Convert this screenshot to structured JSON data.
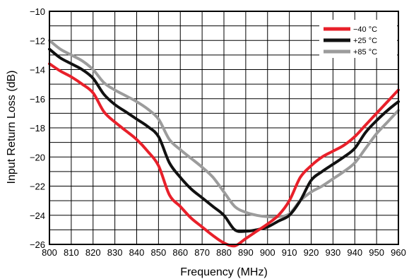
{
  "chart_data": {
    "type": "line",
    "title": "",
    "xlabel": "Frequency (MHz)",
    "ylabel": "Input Return Loss (dB)",
    "xlim": [
      800,
      960
    ],
    "ylim": [
      -26,
      -10
    ],
    "xticks": [
      800,
      810,
      820,
      830,
      840,
      850,
      860,
      870,
      880,
      890,
      900,
      910,
      920,
      930,
      940,
      950,
      960
    ],
    "yticks": [
      -10,
      -12,
      -14,
      -16,
      -18,
      -20,
      -22,
      -24,
      -26
    ],
    "xtick_labels": [
      "800",
      "810",
      "820",
      "830",
      "840",
      "850",
      "860",
      "870",
      "880",
      "890",
      "900",
      "910",
      "920",
      "930",
      "940",
      "950",
      "960"
    ],
    "ytick_labels": [
      "−10",
      "−12",
      "−14",
      "−16",
      "−18",
      "−20",
      "−22",
      "−24",
      "−26"
    ],
    "grid": true,
    "legend_position": "top-right",
    "series": [
      {
        "name": "−40 °C",
        "color": "#e8202a",
        "x": [
          800,
          805,
          810,
          815,
          820,
          825,
          830,
          835,
          840,
          845,
          850,
          855,
          860,
          865,
          870,
          875,
          880,
          885,
          890,
          895,
          900,
          905,
          910,
          915,
          920,
          925,
          930,
          935,
          940,
          945,
          950,
          955,
          960
        ],
        "y": [
          -13.6,
          -14.1,
          -14.5,
          -15.0,
          -15.6,
          -16.9,
          -17.6,
          -18.2,
          -18.8,
          -19.6,
          -20.6,
          -22.6,
          -23.4,
          -24.2,
          -24.8,
          -25.4,
          -25.9,
          -26.1,
          -25.6,
          -25.1,
          -24.6,
          -24.0,
          -23.0,
          -21.4,
          -20.6,
          -20.0,
          -19.6,
          -19.2,
          -18.6,
          -17.8,
          -17.0,
          -16.2,
          -15.4
        ]
      },
      {
        "name": "+25 °C",
        "color": "#111111",
        "x": [
          800,
          805,
          810,
          815,
          820,
          825,
          830,
          835,
          840,
          845,
          850,
          855,
          860,
          865,
          870,
          875,
          880,
          885,
          890,
          895,
          900,
          905,
          910,
          915,
          920,
          925,
          930,
          935,
          940,
          945,
          950,
          955,
          960
        ],
        "y": [
          -12.6,
          -13.2,
          -13.6,
          -14.0,
          -14.6,
          -15.7,
          -16.4,
          -16.9,
          -17.4,
          -17.9,
          -18.6,
          -20.4,
          -21.4,
          -22.2,
          -22.8,
          -23.4,
          -24.0,
          -25.0,
          -25.1,
          -25.0,
          -24.8,
          -24.4,
          -24.0,
          -23.0,
          -21.6,
          -21.0,
          -20.5,
          -20.0,
          -19.4,
          -18.3,
          -17.5,
          -16.8,
          -16.2
        ]
      },
      {
        "name": "+85 °C",
        "color": "#9c9c9c",
        "x": [
          800,
          805,
          810,
          815,
          820,
          825,
          830,
          835,
          840,
          845,
          850,
          855,
          860,
          865,
          870,
          875,
          880,
          885,
          890,
          895,
          900,
          905,
          910,
          915,
          920,
          925,
          930,
          935,
          940,
          945,
          950,
          955,
          960
        ],
        "y": [
          -12.0,
          -12.6,
          -13.0,
          -13.4,
          -14.0,
          -14.9,
          -15.4,
          -15.8,
          -16.2,
          -16.7,
          -17.4,
          -18.8,
          -19.5,
          -20.1,
          -20.7,
          -21.4,
          -22.4,
          -23.4,
          -23.8,
          -24.0,
          -24.1,
          -24.1,
          -23.9,
          -23.0,
          -22.4,
          -22.0,
          -21.5,
          -21.0,
          -20.4,
          -19.4,
          -18.4,
          -17.6,
          -16.8
        ]
      }
    ]
  }
}
